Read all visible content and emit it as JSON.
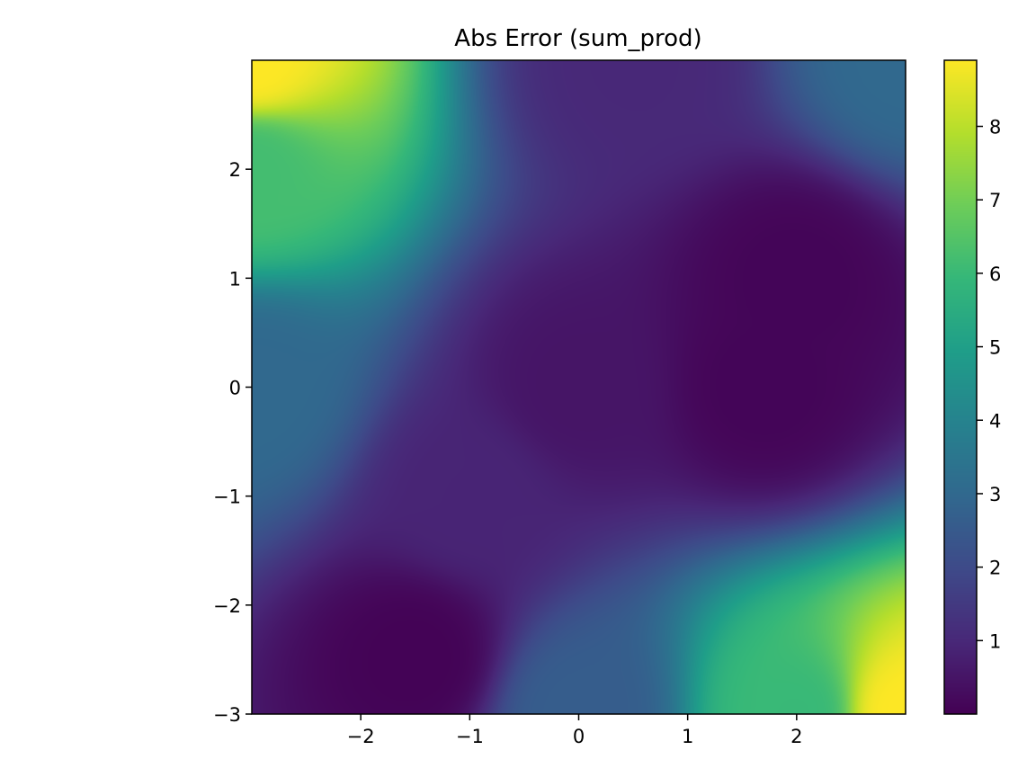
{
  "chart_data": {
    "type": "heatmap",
    "title": "Abs Error (sum_prod)",
    "xlabel": "",
    "ylabel": "",
    "xlim": [
      -3,
      3
    ],
    "ylim": [
      -3,
      3
    ],
    "x_ticks": [
      -2,
      -1,
      0,
      1,
      2
    ],
    "x_tick_labels": [
      "−2",
      "−1",
      "0",
      "1",
      "2"
    ],
    "y_ticks": [
      -3,
      -2,
      -1,
      0,
      1,
      2
    ],
    "y_tick_labels": [
      "−3",
      "−2",
      "−1",
      "0",
      "1",
      "2"
    ],
    "colormap": "viridis",
    "colorbar": {
      "vmin": 0.0,
      "vmax": 8.9,
      "ticks": [
        1,
        2,
        3,
        4,
        5,
        6,
        7,
        8
      ],
      "tick_labels": [
        "1",
        "2",
        "3",
        "4",
        "5",
        "6",
        "7",
        "8"
      ]
    },
    "grid": false,
    "approx_values": [
      {
        "x": -3,
        "y": 3,
        "value": 8.9
      },
      {
        "x": 3,
        "y": -3,
        "value": 8.9
      },
      {
        "x": -3,
        "y": 2,
        "value": 6.2
      },
      {
        "x": -3,
        "y": 0,
        "value": 3.0
      },
      {
        "x": -1,
        "y": -1,
        "value": 0.9
      },
      {
        "x": -1.5,
        "y": -2.5,
        "value": 0.05
      },
      {
        "x": 0,
        "y": 0,
        "value": 0.5
      },
      {
        "x": 2,
        "y": 1,
        "value": 0.1
      },
      {
        "x": 0,
        "y": -3,
        "value": 2.6
      },
      {
        "x": 2,
        "y": -3,
        "value": 6.0
      },
      {
        "x": 3,
        "y": 3,
        "value": 3.0
      },
      {
        "x": 1.7,
        "y": 0,
        "value": 0.1
      },
      {
        "x": 0.5,
        "y": 3,
        "value": 1.0
      }
    ]
  }
}
